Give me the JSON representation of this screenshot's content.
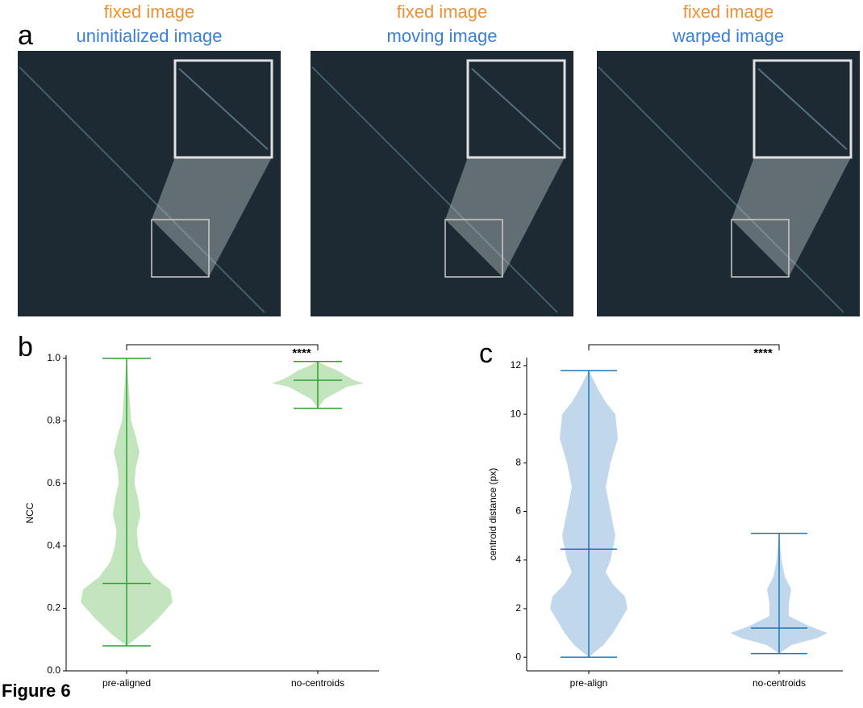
{
  "figure": {
    "label": "Figure 6",
    "panels": [
      "a",
      "b",
      "c"
    ],
    "images": [
      {
        "top": "fixed image",
        "bottom": "uninitialized image"
      },
      {
        "top": "fixed image",
        "bottom": "moving image"
      },
      {
        "top": "fixed image",
        "bottom": "warped image"
      }
    ]
  },
  "chart_data": [
    {
      "type": "violin",
      "ylabel": "NCC",
      "categories": [
        "pre-aligned",
        "no-centroids"
      ],
      "color": "#2ca02c",
      "fill": "#b7e0b1",
      "significance": "****",
      "ylim": [
        0,
        1.01
      ],
      "yticks": [
        {
          "value": 0,
          "label": "0.0"
        },
        {
          "value": 0.2,
          "label": "0.2"
        },
        {
          "value": 0.4,
          "label": "0.4"
        },
        {
          "value": 0.6,
          "label": "0.6"
        },
        {
          "value": 0.8,
          "label": "0.8"
        },
        {
          "value": 1,
          "label": "1.0"
        }
      ],
      "stats": {
        "min": [
          0.08,
          0.84
        ],
        "max": [
          1.0,
          0.99
        ],
        "median": [
          0.28,
          0.93
        ]
      },
      "density": [
        {
          "y": [
            0.08,
            0.12,
            0.17,
            0.22,
            0.26,
            0.3,
            0.35,
            0.4,
            0.45,
            0.5,
            0.55,
            0.6,
            0.65,
            0.7,
            0.75,
            0.8,
            0.9,
            1.0
          ],
          "width": [
            0,
            0.35,
            0.7,
            1.0,
            0.95,
            0.6,
            0.35,
            0.25,
            0.22,
            0.3,
            0.25,
            0.17,
            0.2,
            0.28,
            0.2,
            0.1,
            0.05,
            0
          ]
        },
        {
          "y": [
            0.84,
            0.87,
            0.89,
            0.91,
            0.92,
            0.93,
            0.945,
            0.96,
            0.975,
            0.99
          ],
          "width": [
            0,
            0.15,
            0.4,
            0.65,
            1.0,
            0.8,
            0.6,
            0.45,
            0.2,
            0
          ]
        }
      ]
    },
    {
      "type": "violin",
      "ylabel": "centroid distance (px)",
      "categories": [
        "pre-align",
        "no-centroids"
      ],
      "color": "#1f77b4",
      "fill": "#b6d0e7",
      "significance": "****",
      "ylim": [
        -0.56,
        12.33
      ],
      "yticks": [
        0,
        2,
        4,
        6,
        8,
        10,
        12
      ],
      "stats": {
        "min": [
          0,
          0.15
        ],
        "max": [
          11.8,
          5.1
        ],
        "median": [
          4.45,
          1.2
        ]
      },
      "density": [
        {
          "y": [
            0,
            0.5,
            1,
            2,
            2.5,
            3,
            3.5,
            4,
            5,
            6,
            7,
            8,
            9,
            10,
            10.5,
            11,
            11.8
          ],
          "width": [
            0,
            0.3,
            0.5,
            0.8,
            0.75,
            0.5,
            0.35,
            0.45,
            0.55,
            0.45,
            0.35,
            0.45,
            0.6,
            0.55,
            0.35,
            0.2,
            0
          ]
        },
        {
          "y": [
            0.15,
            0.5,
            0.8,
            1.0,
            1.3,
            1.7,
            2.2,
            2.8,
            3.3,
            4,
            5.1
          ],
          "width": [
            0,
            0.25,
            0.8,
            1.0,
            0.6,
            0.2,
            0.2,
            0.25,
            0.12,
            0.05,
            0
          ]
        }
      ]
    }
  ]
}
